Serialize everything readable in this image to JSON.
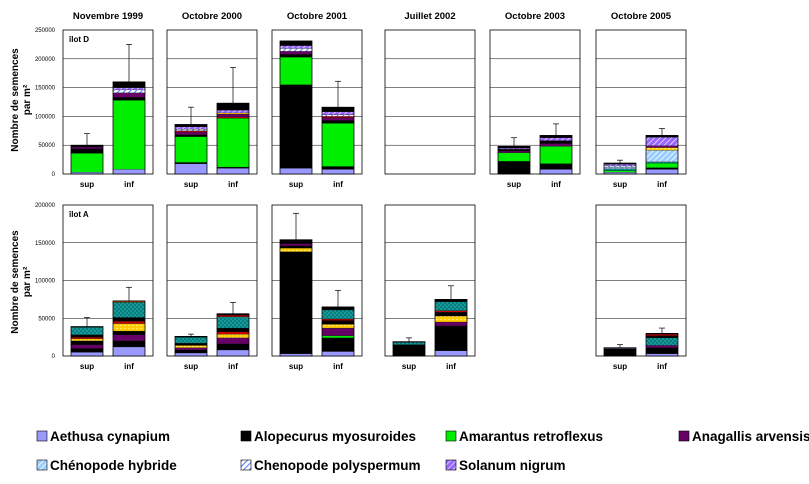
{
  "chart_data": {
    "type": "bar",
    "stacked": true,
    "ylabel_line1": "Nombre de semences",
    "ylabel_line2": "par m²",
    "columns": [
      "Novembre 1999",
      "Octobre 2000",
      "Octobre 2001",
      "Juillet 2002",
      "Octobre 2003",
      "Octobre 2005"
    ],
    "categories": [
      "sup",
      "inf"
    ],
    "grid": true,
    "legend_position": "bottom",
    "species": [
      {
        "name": "Aethusa cynapium",
        "color": "#9999ff",
        "pattern": "solid"
      },
      {
        "name": "Alopecurus myosuroides",
        "color": "#000000",
        "pattern": "solid"
      },
      {
        "name": "Amarantus retroflexus",
        "color": "#00ee00",
        "pattern": "solid"
      },
      {
        "name": "Anagallis arvensis",
        "color": "#660066",
        "pattern": "solid"
      },
      {
        "name": "Chénopode hybride",
        "color": "#99ccff",
        "pattern": "hatch-light"
      },
      {
        "name": "Chenopode polyspermum",
        "color": "#3366ff",
        "pattern": "hatch-dark"
      },
      {
        "name": "Solanum nigrum",
        "color": "#9966ff",
        "pattern": "hatch-purple"
      }
    ],
    "extra_colors": {
      "teal": "#008080",
      "yellow": "#ffcc00",
      "red": "#cc0000",
      "brown": "#993300"
    },
    "rows": [
      {
        "plot_label": "îlot D",
        "ylim": [
          0,
          250000
        ],
        "yticks": [
          0,
          50000,
          100000,
          150000,
          200000,
          250000
        ],
        "panels": [
          {
            "column": "Novembre 1999",
            "bars": [
              {
                "category": "sup",
                "error": 20000,
                "segments": [
                  [
                    "a",
                    3000
                  ],
                  [
                    "c",
                    33000
                  ],
                  [
                    "b",
                    8000
                  ],
                  [
                    "d",
                    3000
                  ],
                  [
                    "b",
                    3000
                  ]
                ]
              },
              {
                "category": "inf",
                "error": 65000,
                "segments": [
                  [
                    "a",
                    8000
                  ],
                  [
                    "c",
                    120000
                  ],
                  [
                    "b",
                    5000
                  ],
                  [
                    "d",
                    8000
                  ],
                  [
                    "f",
                    5000
                  ],
                  [
                    "g",
                    4000
                  ],
                  [
                    "b",
                    10000
                  ]
                ]
              }
            ]
          },
          {
            "column": "Octobre 2000",
            "bars": [
              {
                "category": "sup",
                "error": 30000,
                "segments": [
                  [
                    "a",
                    18000
                  ],
                  [
                    "b",
                    2000
                  ],
                  [
                    "c",
                    45000
                  ],
                  [
                    "b",
                    3000
                  ],
                  [
                    "d",
                    5000
                  ],
                  [
                    "r",
                    2000
                  ],
                  [
                    "f",
                    3000
                  ],
                  [
                    "g",
                    4000
                  ],
                  [
                    "b",
                    4000
                  ]
                ]
              },
              {
                "category": "inf",
                "error": 62000,
                "segments": [
                  [
                    "a",
                    10000
                  ],
                  [
                    "b",
                    2000
                  ],
                  [
                    "c",
                    85000
                  ],
                  [
                    "r",
                    2000
                  ],
                  [
                    "d",
                    5000
                  ],
                  [
                    "y",
                    2000
                  ],
                  [
                    "g",
                    5000
                  ],
                  [
                    "b",
                    12000
                  ]
                ]
              }
            ]
          },
          {
            "column": "Octobre 2001",
            "bars": [
              {
                "category": "sup",
                "error": 0,
                "segments": [
                  [
                    "a",
                    10000
                  ],
                  [
                    "b",
                    145000
                  ],
                  [
                    "c",
                    48000
                  ],
                  [
                    "b",
                    5000
                  ],
                  [
                    "d",
                    5000
                  ],
                  [
                    "f",
                    5000
                  ],
                  [
                    "g",
                    5000
                  ],
                  [
                    "b",
                    8000
                  ]
                ]
              },
              {
                "category": "inf",
                "error": 45000,
                "segments": [
                  [
                    "a",
                    8000
                  ],
                  [
                    "b",
                    5000
                  ],
                  [
                    "c",
                    75000
                  ],
                  [
                    "b",
                    5000
                  ],
                  [
                    "d",
                    5000
                  ],
                  [
                    "r",
                    2000
                  ],
                  [
                    "f",
                    3000
                  ],
                  [
                    "g",
                    5000
                  ],
                  [
                    "b",
                    8000
                  ]
                ]
              }
            ]
          },
          {
            "column": "Juillet 2002",
            "bars": []
          },
          {
            "column": "Octobre 2003",
            "bars": [
              {
                "category": "sup",
                "error": 15000,
                "segments": [
                  [
                    "b",
                    22000
                  ],
                  [
                    "c",
                    15000
                  ],
                  [
                    "d",
                    3000
                  ],
                  [
                    "b",
                    3000
                  ],
                  [
                    "g",
                    2000
                  ],
                  [
                    "b",
                    3000
                  ]
                ]
              },
              {
                "category": "inf",
                "error": 20000,
                "segments": [
                  [
                    "a",
                    8000
                  ],
                  [
                    "b",
                    10000
                  ],
                  [
                    "c",
                    30000
                  ],
                  [
                    "d",
                    5000
                  ],
                  [
                    "b",
                    5000
                  ],
                  [
                    "g",
                    5000
                  ],
                  [
                    "b",
                    4000
                  ]
                ]
              }
            ]
          },
          {
            "column": "Octobre 2005",
            "bars": [
              {
                "category": "sup",
                "error": 5000,
                "segments": [
                  [
                    "a",
                    3000
                  ],
                  [
                    "c",
                    3000
                  ],
                  [
                    "t",
                    3000
                  ],
                  [
                    "e",
                    3000
                  ],
                  [
                    "f",
                    2000
                  ],
                  [
                    "g",
                    3000
                  ],
                  [
                    "b",
                    2000
                  ]
                ]
              },
              {
                "category": "inf",
                "error": 12000,
                "segments": [
                  [
                    "a",
                    8000
                  ],
                  [
                    "b",
                    3000
                  ],
                  [
                    "c",
                    8000
                  ],
                  [
                    "t",
                    2000
                  ],
                  [
                    "e",
                    20000
                  ],
                  [
                    "y",
                    5000
                  ],
                  [
                    "d",
                    3000
                  ],
                  [
                    "g",
                    15000
                  ],
                  [
                    "b",
                    3000
                  ]
                ]
              }
            ]
          }
        ]
      },
      {
        "plot_label": "îlot A",
        "ylim": [
          0,
          200000
        ],
        "yticks": [
          0,
          50000,
          100000,
          150000,
          200000
        ],
        "panels": [
          {
            "column": "Novembre 1999",
            "bars": [
              {
                "category": "sup",
                "error": 12000,
                "segments": [
                  [
                    "a",
                    5000
                  ],
                  [
                    "b",
                    5000
                  ],
                  [
                    "d",
                    5000
                  ],
                  [
                    "b",
                    5000
                  ],
                  [
                    "y",
                    3000
                  ],
                  [
                    "r",
                    2000
                  ],
                  [
                    "b",
                    3000
                  ],
                  [
                    "t",
                    10000
                  ],
                  [
                    "b",
                    1000
                  ]
                ]
              },
              {
                "category": "inf",
                "error": 18000,
                "segments": [
                  [
                    "a",
                    12000
                  ],
                  [
                    "b",
                    8000
                  ],
                  [
                    "d",
                    8000
                  ],
                  [
                    "b",
                    5000
                  ],
                  [
                    "y",
                    10000
                  ],
                  [
                    "r",
                    3000
                  ],
                  [
                    "b",
                    5000
                  ],
                  [
                    "t",
                    20000
                  ],
                  [
                    "br",
                    2000
                  ]
                ]
              }
            ]
          },
          {
            "column": "Octobre 2000",
            "bars": [
              {
                "category": "sup",
                "error": 3000,
                "segments": [
                  [
                    "a",
                    4000
                  ],
                  [
                    "b",
                    4000
                  ],
                  [
                    "d",
                    3000
                  ],
                  [
                    "y",
                    3000
                  ],
                  [
                    "b",
                    3000
                  ],
                  [
                    "t",
                    8000
                  ],
                  [
                    "b",
                    1000
                  ]
                ]
              },
              {
                "category": "inf",
                "error": 15000,
                "segments": [
                  [
                    "a",
                    8000
                  ],
                  [
                    "b",
                    8000
                  ],
                  [
                    "d",
                    8000
                  ],
                  [
                    "y",
                    5000
                  ],
                  [
                    "r",
                    3000
                  ],
                  [
                    "b",
                    5000
                  ],
                  [
                    "t",
                    15000
                  ],
                  [
                    "r",
                    2000
                  ],
                  [
                    "b",
                    2000
                  ]
                ]
              }
            ]
          },
          {
            "column": "Octobre 2001",
            "bars": [
              {
                "category": "sup",
                "error": 35000,
                "segments": [
                  [
                    "a",
                    3000
                  ],
                  [
                    "b",
                    135000
                  ],
                  [
                    "y",
                    5000
                  ],
                  [
                    "b",
                    3000
                  ],
                  [
                    "d",
                    3000
                  ],
                  [
                    "b",
                    5000
                  ]
                ]
              },
              {
                "category": "inf",
                "error": 22000,
                "segments": [
                  [
                    "a",
                    6000
                  ],
                  [
                    "b",
                    18000
                  ],
                  [
                    "c",
                    3000
                  ],
                  [
                    "d",
                    10000
                  ],
                  [
                    "y",
                    5000
                  ],
                  [
                    "b",
                    5000
                  ],
                  [
                    "r",
                    2000
                  ],
                  [
                    "t",
                    12000
                  ],
                  [
                    "b",
                    4000
                  ]
                ]
              }
            ]
          },
          {
            "column": "Juillet 2002",
            "bars": [
              {
                "category": "sup",
                "error": 5000,
                "segments": [
                  [
                    "b",
                    15000
                  ],
                  [
                    "t",
                    3000
                  ],
                  [
                    "b",
                    1000
                  ]
                ]
              },
              {
                "category": "inf",
                "error": 18000,
                "segments": [
                  [
                    "a",
                    7000
                  ],
                  [
                    "b",
                    33000
                  ],
                  [
                    "d",
                    5000
                  ],
                  [
                    "y",
                    8000
                  ],
                  [
                    "b",
                    5000
                  ],
                  [
                    "r",
                    2000
                  ],
                  [
                    "t",
                    12000
                  ],
                  [
                    "b",
                    3000
                  ]
                ]
              }
            ]
          },
          {
            "column": "Octobre 2003",
            "bars": [],
            "blank": true
          },
          {
            "column": "Octobre 2005",
            "bars": [
              {
                "category": "sup",
                "error": 4000,
                "segments": [
                  [
                    "b",
                    10000
                  ],
                  [
                    "a",
                    1000
                  ]
                ]
              },
              {
                "category": "inf",
                "error": 7000,
                "segments": [
                  [
                    "a",
                    3000
                  ],
                  [
                    "b",
                    8000
                  ],
                  [
                    "d",
                    3000
                  ],
                  [
                    "t",
                    10000
                  ],
                  [
                    "b",
                    3000
                  ],
                  [
                    "r",
                    2000
                  ],
                  [
                    "b",
                    1000
                  ]
                ]
              }
            ]
          }
        ]
      }
    ]
  }
}
